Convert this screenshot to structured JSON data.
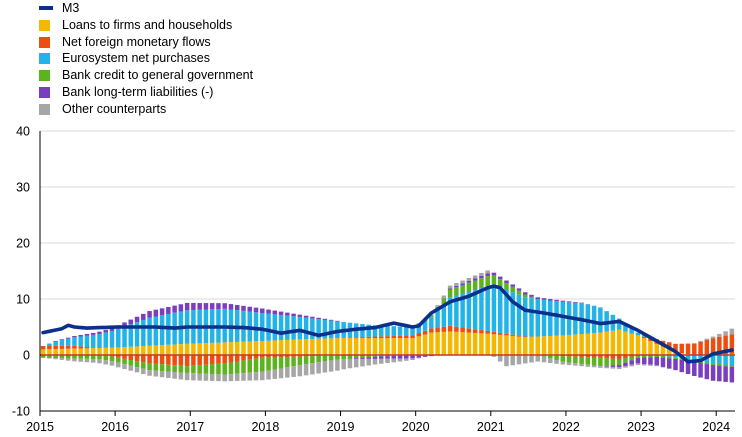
{
  "chart_data": {
    "type": "bar",
    "subtype": "stacked bar with line overlay",
    "title": "",
    "xlabel": "",
    "ylabel": "",
    "ylim": [
      -10,
      40
    ],
    "y_ticks": [
      -10,
      0,
      10,
      20,
      30,
      40
    ],
    "x_ticks": [
      "2015",
      "2016",
      "2017",
      "2018",
      "2019",
      "2020",
      "2021",
      "2022",
      "2023",
      "2024"
    ],
    "x_start": "2015-01",
    "x_end": "2024-03",
    "frequency": "monthly",
    "grid": "horizontal",
    "legend_position": "top-left",
    "series": [
      {
        "name": "M3",
        "kind": "line",
        "color": "#0d2f8c",
        "anchors": [
          [
            "2015-01",
            4.0
          ],
          [
            "2015-04",
            4.7
          ],
          [
            "2015-05",
            5.3
          ],
          [
            "2015-06",
            5.0
          ],
          [
            "2015-08",
            4.8
          ],
          [
            "2015-10",
            4.9
          ],
          [
            "2016-01",
            5.0
          ],
          [
            "2016-04",
            5.0
          ],
          [
            "2016-07",
            5.0
          ],
          [
            "2016-10",
            4.8
          ],
          [
            "2016-12",
            5.0
          ],
          [
            "2017-03",
            5.0
          ],
          [
            "2017-06",
            5.0
          ],
          [
            "2017-09",
            4.9
          ],
          [
            "2017-12",
            4.6
          ],
          [
            "2018-03",
            3.9
          ],
          [
            "2018-06",
            4.4
          ],
          [
            "2018-09",
            3.5
          ],
          [
            "2018-12",
            4.2
          ],
          [
            "2019-03",
            4.6
          ],
          [
            "2019-06",
            4.9
          ],
          [
            "2019-09",
            5.7
          ],
          [
            "2019-12",
            5.0
          ],
          [
            "2020-01",
            5.2
          ],
          [
            "2020-03",
            7.5
          ],
          [
            "2020-06",
            9.5
          ],
          [
            "2020-09",
            10.5
          ],
          [
            "2020-12",
            12.0
          ],
          [
            "2021-01",
            12.3
          ],
          [
            "2021-02",
            12.0
          ],
          [
            "2021-04",
            9.5
          ],
          [
            "2021-06",
            8.0
          ],
          [
            "2021-09",
            7.5
          ],
          [
            "2021-12",
            6.9
          ],
          [
            "2022-03",
            6.3
          ],
          [
            "2022-06",
            5.6
          ],
          [
            "2022-09",
            6.0
          ],
          [
            "2022-12",
            4.4
          ],
          [
            "2023-03",
            2.5
          ],
          [
            "2023-06",
            0.6
          ],
          [
            "2023-08",
            -1.2
          ],
          [
            "2023-10",
            -1.0
          ],
          [
            "2023-12",
            0.2
          ],
          [
            "2024-03",
            0.9
          ]
        ]
      },
      {
        "name": "Loans to firms and households",
        "kind": "bar",
        "color": "#f5b800",
        "anchors": [
          [
            "2015-01",
            1.0
          ],
          [
            "2015-12",
            1.3
          ],
          [
            "2016-12",
            2.0
          ],
          [
            "2017-12",
            2.5
          ],
          [
            "2018-06",
            2.8
          ],
          [
            "2018-12",
            3.0
          ],
          [
            "2019-06",
            3.0
          ],
          [
            "2019-12",
            3.0
          ],
          [
            "2020-03",
            4.0
          ],
          [
            "2020-06",
            4.2
          ],
          [
            "2020-12",
            3.8
          ],
          [
            "2021-06",
            3.2
          ],
          [
            "2021-12",
            3.5
          ],
          [
            "2022-06",
            4.0
          ],
          [
            "2022-09",
            4.5
          ],
          [
            "2022-12",
            3.5
          ],
          [
            "2023-03",
            2.0
          ],
          [
            "2023-06",
            0.5
          ],
          [
            "2023-09",
            0.0
          ],
          [
            "2023-12",
            0.0
          ],
          [
            "2024-03",
            0.2
          ]
        ]
      },
      {
        "name": "Net foreign monetary flows",
        "kind": "bar",
        "color": "#ef4c0f",
        "anchors": [
          [
            "2015-01",
            0.6
          ],
          [
            "2015-06",
            0.5
          ],
          [
            "2015-12",
            -0.3
          ],
          [
            "2016-06",
            -1.5
          ],
          [
            "2016-12",
            -2.0
          ],
          [
            "2017-06",
            -1.5
          ],
          [
            "2017-12",
            -0.5
          ],
          [
            "2018-06",
            -0.3
          ],
          [
            "2018-12",
            0.0
          ],
          [
            "2019-06",
            0.3
          ],
          [
            "2019-12",
            0.5
          ],
          [
            "2020-06",
            1.0
          ],
          [
            "2020-12",
            0.5
          ],
          [
            "2021-06",
            0.1
          ],
          [
            "2021-12",
            -0.2
          ],
          [
            "2022-06",
            -0.5
          ],
          [
            "2022-09",
            -0.8
          ],
          [
            "2022-12",
            0.0
          ],
          [
            "2023-03",
            0.8
          ],
          [
            "2023-06",
            1.5
          ],
          [
            "2023-09",
            2.0
          ],
          [
            "2023-12",
            3.0
          ],
          [
            "2024-03",
            3.5
          ]
        ]
      },
      {
        "name": "Eurosystem net purchases",
        "kind": "bar",
        "color": "#22b4e8",
        "anchors": [
          [
            "2015-01",
            0.0
          ],
          [
            "2015-03",
            0.8
          ],
          [
            "2015-12",
            3.0
          ],
          [
            "2016-06",
            5.0
          ],
          [
            "2016-12",
            6.0
          ],
          [
            "2017-06",
            6.0
          ],
          [
            "2017-12",
            5.0
          ],
          [
            "2018-06",
            4.0
          ],
          [
            "2018-12",
            3.0
          ],
          [
            "2019-06",
            2.0
          ],
          [
            "2019-12",
            1.5
          ],
          [
            "2020-03",
            2.0
          ],
          [
            "2020-06",
            5.0
          ],
          [
            "2020-12",
            8.0
          ],
          [
            "2021-01",
            8.5
          ],
          [
            "2021-06",
            7.0
          ],
          [
            "2021-12",
            6.0
          ],
          [
            "2022-03",
            5.5
          ],
          [
            "2022-06",
            4.5
          ],
          [
            "2022-09",
            2.0
          ],
          [
            "2022-12",
            0.5
          ],
          [
            "2023-03",
            0.0
          ],
          [
            "2023-06",
            -0.5
          ],
          [
            "2023-09",
            -1.0
          ],
          [
            "2023-12",
            -1.5
          ],
          [
            "2024-03",
            -1.8
          ]
        ]
      },
      {
        "name": "Bank credit to general government",
        "kind": "bar",
        "color": "#5bb41d",
        "anchors": [
          [
            "2015-01",
            -0.5
          ],
          [
            "2015-12",
            -0.8
          ],
          [
            "2016-06",
            -1.2
          ],
          [
            "2016-12",
            -1.2
          ],
          [
            "2017-06",
            -2.0
          ],
          [
            "2017-12",
            -2.5
          ],
          [
            "2018-06",
            -1.5
          ],
          [
            "2018-12",
            -0.8
          ],
          [
            "2019-06",
            -0.3
          ],
          [
            "2019-12",
            0.0
          ],
          [
            "2020-03",
            0.3
          ],
          [
            "2020-06",
            1.5
          ],
          [
            "2020-12",
            1.8
          ],
          [
            "2021-06",
            0.5
          ],
          [
            "2021-12",
            -1.0
          ],
          [
            "2022-06",
            -1.5
          ],
          [
            "2022-12",
            -0.5
          ],
          [
            "2023-06",
            -0.2
          ],
          [
            "2023-12",
            -0.3
          ],
          [
            "2024-03",
            -0.3
          ]
        ]
      },
      {
        "name": "Bank long-term liabilities (-)",
        "kind": "bar",
        "color": "#7a3fbf",
        "anchors": [
          [
            "2015-01",
            0.0
          ],
          [
            "2015-12",
            0.5
          ],
          [
            "2016-06",
            1.2
          ],
          [
            "2016-12",
            1.3
          ],
          [
            "2017-06",
            1.0
          ],
          [
            "2017-12",
            0.8
          ],
          [
            "2018-06",
            0.4
          ],
          [
            "2018-12",
            0.1
          ],
          [
            "2019-06",
            -0.4
          ],
          [
            "2019-12",
            -0.6
          ],
          [
            "2020-06",
            0.2
          ],
          [
            "2020-12",
            0.5
          ],
          [
            "2021-06",
            0.4
          ],
          [
            "2021-12",
            0.2
          ],
          [
            "2022-06",
            0.0
          ],
          [
            "2022-09",
            -0.4
          ],
          [
            "2022-12",
            -1.0
          ],
          [
            "2023-03",
            -1.5
          ],
          [
            "2023-06",
            -2.0
          ],
          [
            "2023-09",
            -2.5
          ],
          [
            "2023-12",
            -2.8
          ],
          [
            "2024-03",
            -2.8
          ]
        ]
      },
      {
        "name": "Other counterparts",
        "kind": "bar",
        "color": "#a6a6a6",
        "anchors": [
          [
            "2015-01",
            0.0
          ],
          [
            "2015-06",
            -0.5
          ],
          [
            "2015-12",
            -0.8
          ],
          [
            "2016-06",
            -1.0
          ],
          [
            "2016-12",
            -1.3
          ],
          [
            "2017-06",
            -1.2
          ],
          [
            "2017-12",
            -1.5
          ],
          [
            "2018-06",
            -2.0
          ],
          [
            "2018-12",
            -2.0
          ],
          [
            "2019-06",
            -1.0
          ],
          [
            "2019-12",
            -0.3
          ],
          [
            "2020-03",
            0.2
          ],
          [
            "2020-06",
            0.5
          ],
          [
            "2020-12",
            0.5
          ],
          [
            "2021-03",
            -2.0
          ],
          [
            "2021-06",
            -1.5
          ],
          [
            "2021-12",
            -0.5
          ],
          [
            "2022-06",
            -0.3
          ],
          [
            "2022-12",
            -0.3
          ],
          [
            "2023-06",
            0.0
          ],
          [
            "2023-12",
            0.3
          ],
          [
            "2024-03",
            1.0
          ]
        ]
      }
    ]
  }
}
